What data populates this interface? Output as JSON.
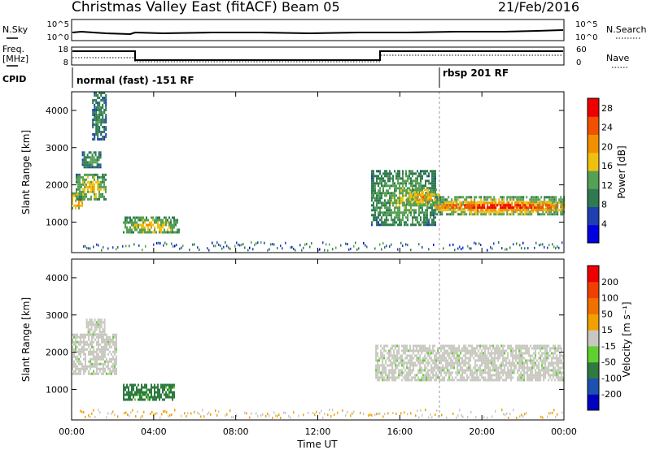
{
  "header": {
    "title": "Christmas Valley East (fitACF)",
    "beam": "Beam 05",
    "date": "21/Feb/2016"
  },
  "status_panels": {
    "nsky_label": "N.Sky",
    "nsearch_label": "N.Search",
    "noise_ticks": [
      "10^5",
      "10^0"
    ],
    "freq_label_1": "Freq.",
    "freq_label_2": "[MHz]",
    "freq_ticks": [
      "18",
      "8"
    ],
    "nave_label": "Nave",
    "nave_ticks": [
      "60",
      "0"
    ],
    "cpid_label": "CPID",
    "cpid_1": "normal (fast) -151 RF",
    "cpid_2": "rbsp 201 RF"
  },
  "chart_data": [
    {
      "type": "heatmap",
      "panel": "power",
      "ylabel": "Slant Range [km]",
      "y_ticks": [
        "4000",
        "3000",
        "2000",
        "1000"
      ],
      "ylim": [
        180,
        4500
      ],
      "xlim": [
        0,
        24
      ],
      "colorbar": {
        "label": "Power [dB]",
        "ticks": [
          "28",
          "24",
          "20",
          "16",
          "12",
          "8",
          "4"
        ],
        "range": [
          0,
          30
        ],
        "colors": [
          "#0000e0",
          "#1e40b0",
          "#2f7a50",
          "#55a055",
          "#f0c010",
          "#f09000",
          "#f05000",
          "#ee0000"
        ]
      },
      "regions": [
        {
          "t0": 0.0,
          "t1": 0.5,
          "r0": 1400,
          "r1": 1800,
          "level": 0.75
        },
        {
          "t0": 0.2,
          "t1": 1.7,
          "r0": 1600,
          "r1": 2300,
          "level": 0.55
        },
        {
          "t0": 0.5,
          "t1": 1.4,
          "r0": 2500,
          "r1": 2900,
          "level": 0.4
        },
        {
          "t0": 1.0,
          "t1": 1.7,
          "r0": 3200,
          "r1": 4500,
          "level": 0.35
        },
        {
          "t0": 2.5,
          "t1": 5.2,
          "r0": 700,
          "r1": 1150,
          "level": 0.55
        },
        {
          "t0": 14.6,
          "t1": 17.7,
          "r0": 900,
          "r1": 2400,
          "level": 0.45
        },
        {
          "t0": 16.3,
          "t1": 17.9,
          "r0": 1500,
          "r1": 1900,
          "level": 0.65
        },
        {
          "t0": 17.7,
          "t1": 24.0,
          "r0": 1200,
          "r1": 1700,
          "level": 0.6
        },
        {
          "t0": 17.7,
          "t1": 24.0,
          "r0": 1350,
          "r1": 1550,
          "level": 0.95
        }
      ]
    },
    {
      "type": "heatmap",
      "panel": "velocity",
      "ylabel": "Slant Range [km]",
      "y_ticks": [
        "4000",
        "3000",
        "2000",
        "1000"
      ],
      "ylim": [
        180,
        4500
      ],
      "xlim": [
        0,
        24
      ],
      "xlabel": "Time UT",
      "x_ticks": [
        "00:00",
        "04:00",
        "08:00",
        "12:00",
        "16:00",
        "20:00",
        "00:00"
      ],
      "colorbar": {
        "label": "Velocity [m s⁻¹]",
        "ticks": [
          "200",
          "100",
          "50",
          "15",
          "-15",
          "-50",
          "-100",
          "-200"
        ],
        "colors": [
          "#0000c0",
          "#1e50b0",
          "#2f7a40",
          "#60d030",
          "#c8c8c0",
          "#f0a000",
          "#f07000",
          "#f04000",
          "#ee0000"
        ]
      },
      "regions": [
        {
          "t0": 0.0,
          "t1": 2.2,
          "r0": 1400,
          "r1": 2500,
          "level": 0.48
        },
        {
          "t0": 0.7,
          "t1": 1.6,
          "r0": 2500,
          "r1": 2900,
          "level": 0.48
        },
        {
          "t0": 2.5,
          "t1": 5.0,
          "r0": 700,
          "r1": 1150,
          "level": 0.3
        },
        {
          "t0": 14.8,
          "t1": 24.0,
          "r0": 1250,
          "r1": 2200,
          "level": 0.48
        }
      ]
    }
  ]
}
